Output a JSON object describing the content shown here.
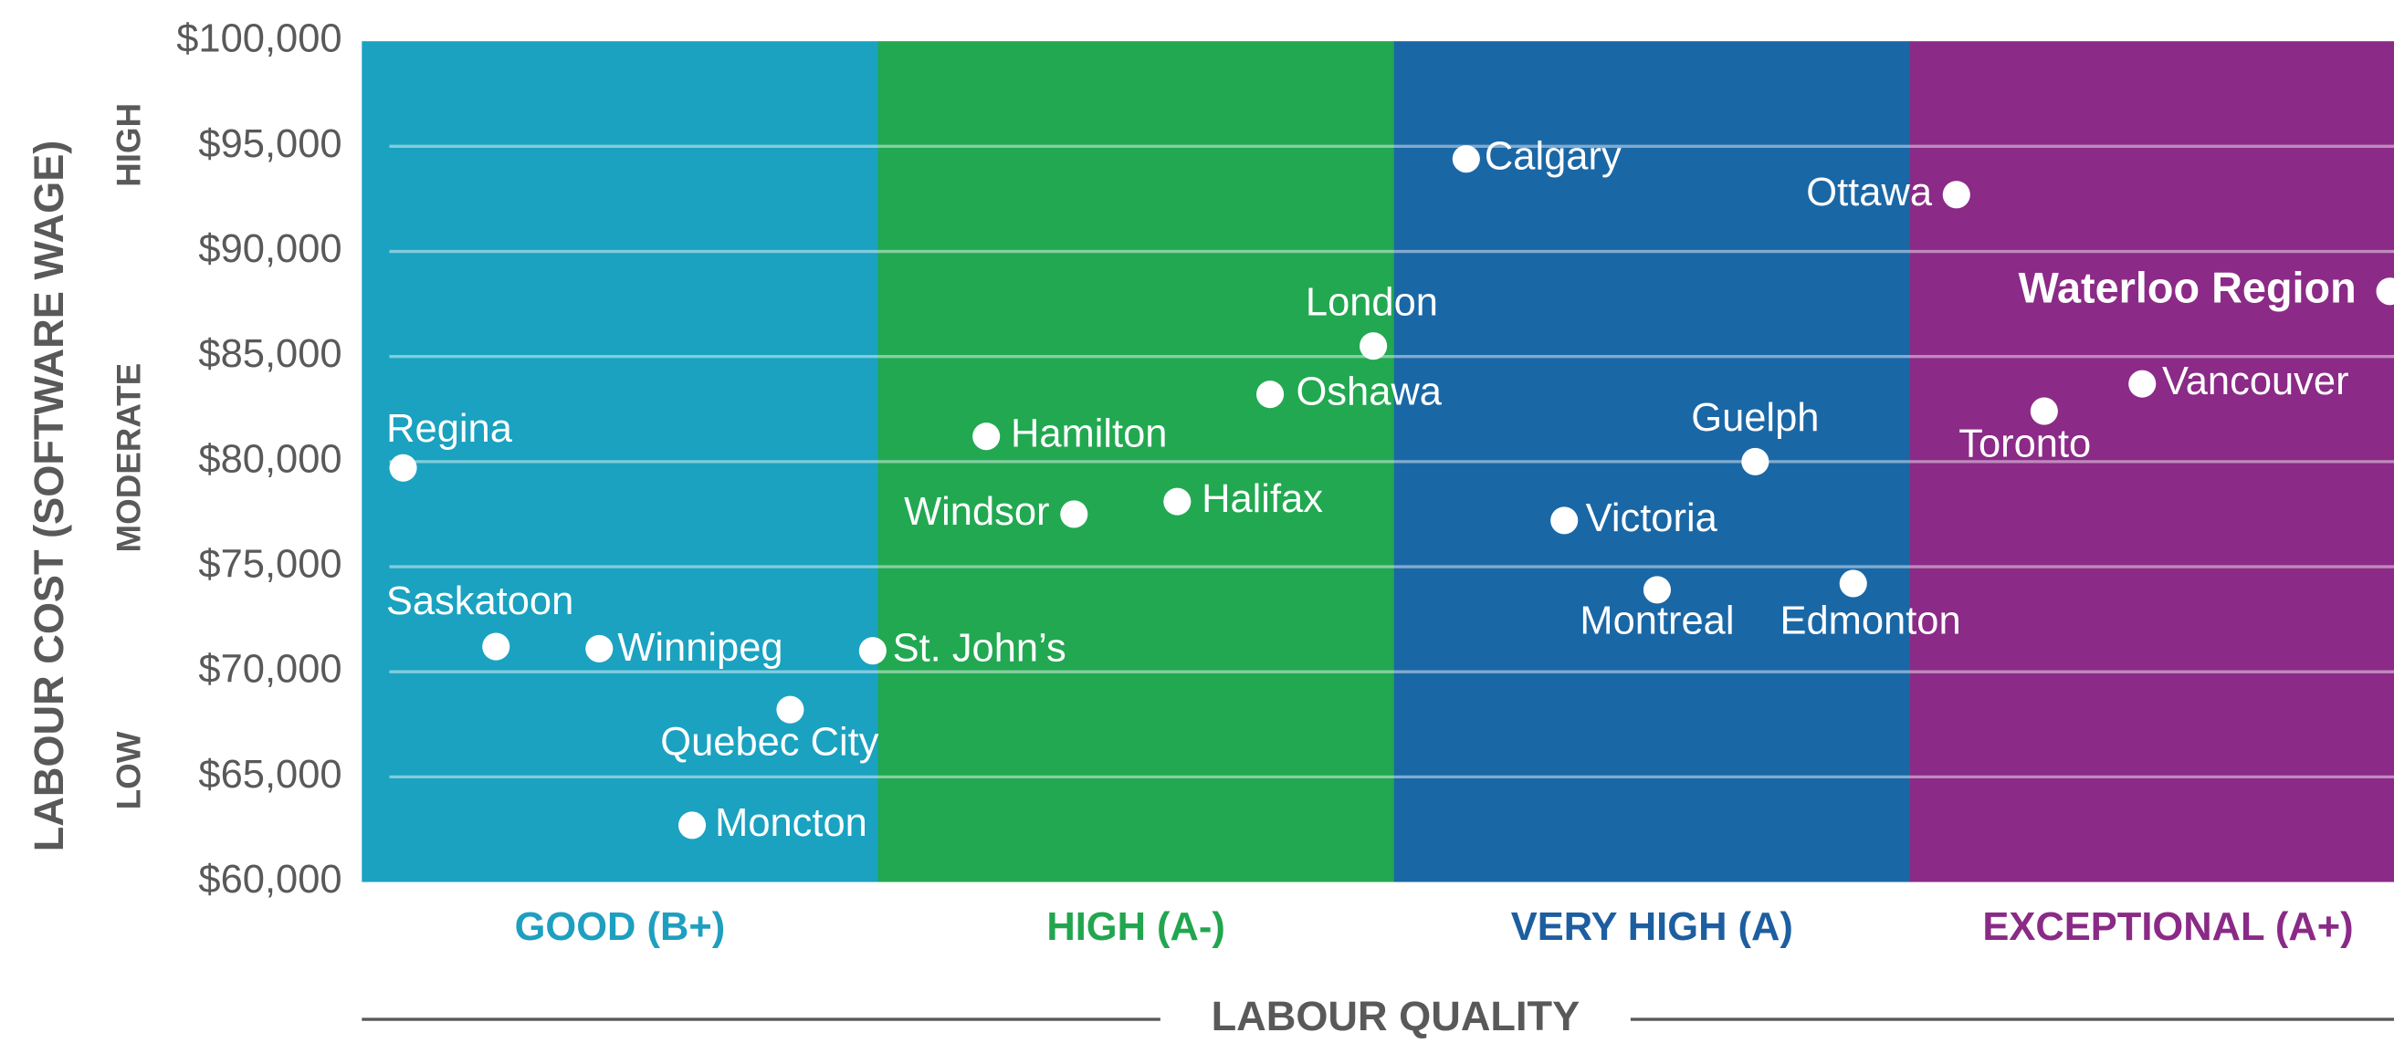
{
  "chart_data": {
    "type": "scatter",
    "y_axis_label": "LABOUR COST (SOFTWARE WAGE)",
    "x_axis_label": "LABOUR QUALITY",
    "categories": [
      "GOOD (B+)",
      "HIGH (A-)",
      "VERY HIGH (A)",
      "EXCEPTIONAL (A+)"
    ],
    "category_colors": [
      "#1aa2c0",
      "#22a851",
      "#1a67a6",
      "#8b2a87"
    ],
    "category_label_colors": [
      "#1e9fc0",
      "#21a64f",
      "#1d5ea0",
      "#8a2a86"
    ],
    "cost_levels": [
      "HIGH",
      "MODERATE",
      "LOW"
    ],
    "labels": [
      "Regina",
      "Saskatoon",
      "Winnipeg",
      "Quebec City",
      "Moncton",
      "St. John’s",
      "Windsor",
      "Hamilton",
      "Halifax",
      "Oshawa",
      "London",
      "Calgary",
      "Victoria",
      "Montreal",
      "Guelph",
      "Edmonton",
      "Ottawa",
      "Toronto",
      "Vancouver",
      "Waterloo Region"
    ],
    "x": [
      0.08,
      0.26,
      0.46,
      0.83,
      0.64,
      0.99,
      1.38,
      1.21,
      1.58,
      1.76,
      1.96,
      2.14,
      2.33,
      2.51,
      2.7,
      2.89,
      3.09,
      3.26,
      3.45,
      3.93
    ],
    "y": [
      79700,
      71200,
      71100,
      68200,
      62700,
      71000,
      77500,
      81200,
      78100,
      83200,
      85500,
      94400,
      77200,
      73900,
      80000,
      74200,
      92700,
      82400,
      83700,
      88100
    ],
    "point_color": "#ffffff",
    "xlim": [
      0,
      4
    ],
    "ylim": [
      60000,
      100000
    ],
    "yticks": [
      {
        "value": 60000,
        "label": "$60,000"
      },
      {
        "value": 65000,
        "label": "$65,000"
      },
      {
        "value": 70000,
        "label": "$70,000"
      },
      {
        "value": 75000,
        "label": "$75,000"
      },
      {
        "value": 80000,
        "label": "$80,000"
      },
      {
        "value": 85000,
        "label": "$85,000"
      },
      {
        "value": 90000,
        "label": "$90,000"
      },
      {
        "value": 95000,
        "label": "$95,000"
      },
      {
        "value": 100000,
        "label": "$100,000"
      }
    ],
    "grid": true
  }
}
